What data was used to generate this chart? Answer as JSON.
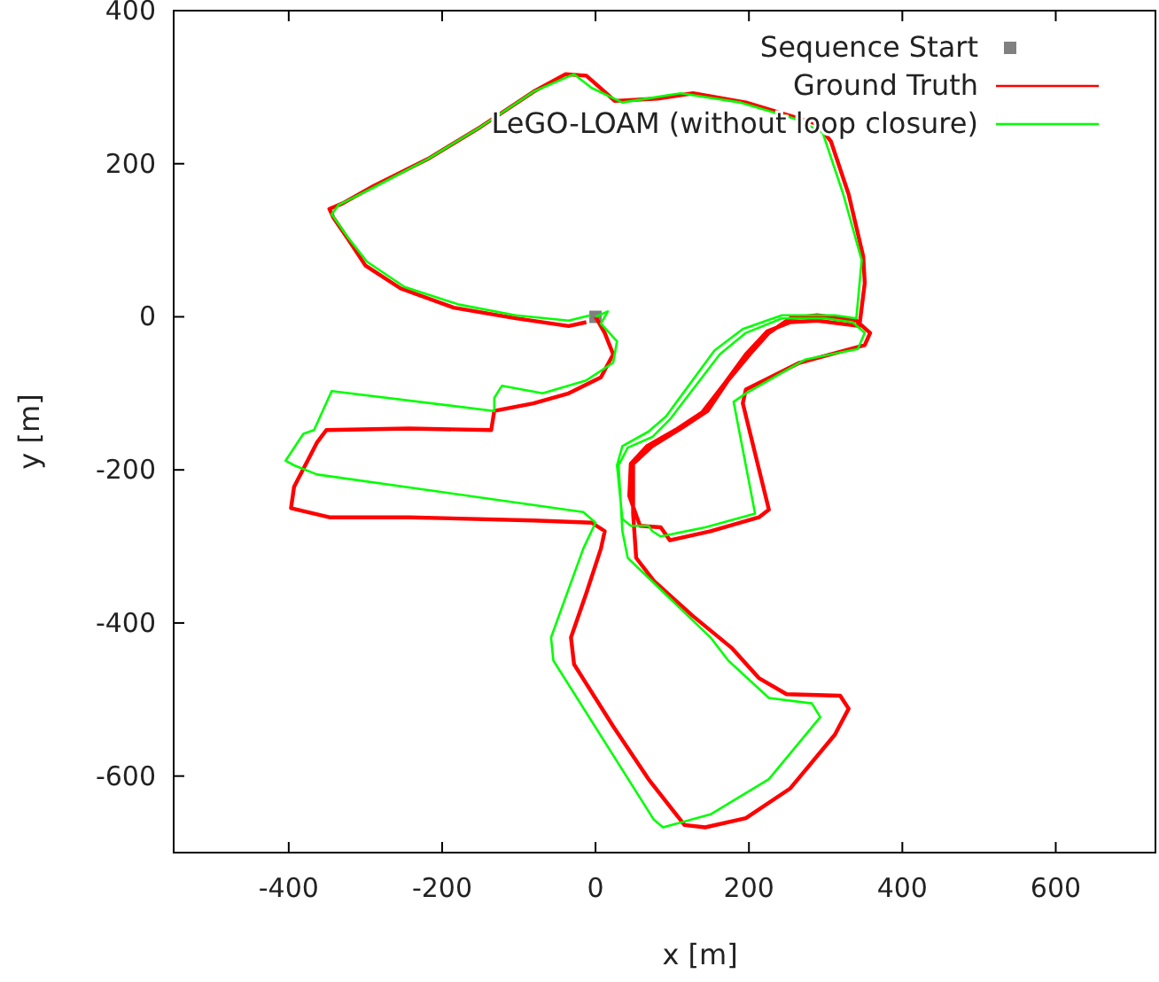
{
  "chart_data": {
    "type": "line",
    "xlabel": "x [m]",
    "ylabel": "y [m]",
    "xlim": [
      -550,
      730
    ],
    "ylim": [
      -700,
      400
    ],
    "xticks": [
      -400,
      -200,
      0,
      200,
      400,
      600
    ],
    "yticks": [
      -600,
      -400,
      -200,
      0,
      200,
      400
    ],
    "grid": false,
    "legend": "top right",
    "marker": "none",
    "line_style": "solid",
    "series": [
      {
        "name": "Sequence Start",
        "type": "scatter",
        "marker": "square",
        "color": "#808080",
        "x": [
          0
        ],
        "values": [
          0
        ]
      },
      {
        "name": "Ground Truth",
        "color": "#ff0000",
        "x": [
          0,
          12,
          23,
          7,
          -35,
          -81,
          -132,
          -136,
          -243,
          -351,
          -363,
          -393,
          -397,
          -347,
          -243,
          -81,
          -5,
          12,
          7,
          -12,
          -32,
          -28,
          23,
          69,
          116,
          143,
          196,
          254,
          312,
          330,
          319,
          249,
          213,
          178,
          127,
          76,
          53,
          49,
          49,
          74,
          111,
          146,
          173,
          201,
          226,
          254,
          289,
          340,
          358,
          351,
          266,
          196,
          192,
          226,
          213,
          150,
          97,
          85,
          58,
          44,
          46,
          67,
          104,
          139,
          169,
          196,
          224,
          254,
          289,
          344,
          351,
          349,
          330,
          307,
          289,
          196,
          127,
          81,
          25,
          12,
          -12,
          -39,
          -81,
          -150,
          -219,
          -289,
          -330,
          -347,
          -342,
          -323,
          -300,
          -254,
          -185,
          -104,
          -35,
          -12
        ],
        "values": [
          0,
          -21,
          -49,
          -79,
          -100,
          -113,
          -123,
          -148,
          -146,
          -148,
          -164,
          -222,
          -250,
          -262,
          -262,
          -266,
          -269,
          -280,
          -303,
          -361,
          -419,
          -454,
          -535,
          -604,
          -664,
          -667,
          -655,
          -616,
          -546,
          -512,
          -495,
          -493,
          -472,
          -433,
          -391,
          -345,
          -315,
          -257,
          -192,
          -169,
          -146,
          -123,
          -83,
          -49,
          -21,
          -2,
          2,
          -5,
          -21,
          -37,
          -60,
          -95,
          -113,
          -252,
          -262,
          -280,
          -292,
          -275,
          -273,
          -234,
          -192,
          -169,
          -148,
          -125,
          -86,
          -49,
          -19,
          -7,
          -5,
          -12,
          44,
          79,
          160,
          229,
          252,
          280,
          292,
          285,
          282,
          294,
          315,
          317,
          294,
          248,
          206,
          171,
          148,
          141,
          130,
          102,
          67,
          37,
          12,
          -2,
          -12,
          -7
        ]
      },
      {
        "name": "LeGO-LOAM (without loop closure)",
        "color": "#00ff00",
        "x": [
          0,
          16,
          7,
          28,
          23,
          -12,
          -69,
          -122,
          -132,
          -132,
          -344,
          -367,
          -381,
          -404,
          -393,
          -363,
          -16,
          0,
          -16,
          -58,
          -55,
          76,
          88,
          150,
          226,
          293,
          282,
          226,
          173,
          150,
          42,
          35,
          30,
          42,
          74,
          97,
          162,
          196,
          243,
          300,
          335,
          351,
          342,
          273,
          196,
          180,
          208,
          143,
          85,
          74,
          69,
          46,
          35,
          28,
          35,
          69,
          92,
          155,
          192,
          243,
          312,
          340,
          347,
          323,
          296,
          259,
          189,
          111,
          35,
          -5,
          -28,
          -81,
          -150,
          -219,
          -289,
          -335,
          -344,
          -323,
          -298,
          -249,
          -178,
          -104,
          -35,
          -7
        ],
        "values": [
          0,
          7,
          -9,
          -32,
          -60,
          -83,
          -100,
          -90,
          -106,
          -123,
          -97,
          -148,
          -153,
          -188,
          -194,
          -206,
          -255,
          -269,
          -303,
          -419,
          -449,
          -657,
          -667,
          -650,
          -604,
          -523,
          -505,
          -498,
          -449,
          -419,
          -315,
          -280,
          -194,
          -171,
          -157,
          -134,
          -49,
          -21,
          -2,
          -2,
          -7,
          -21,
          -42,
          -56,
          -100,
          -111,
          -257,
          -275,
          -287,
          -280,
          -273,
          -273,
          -264,
          -194,
          -169,
          -150,
          -130,
          -44,
          -16,
          2,
          2,
          -2,
          74,
          160,
          241,
          259,
          280,
          292,
          280,
          299,
          317,
          294,
          248,
          206,
          169,
          146,
          134,
          104,
          72,
          39,
          16,
          2,
          -5,
          2
        ]
      }
    ]
  }
}
